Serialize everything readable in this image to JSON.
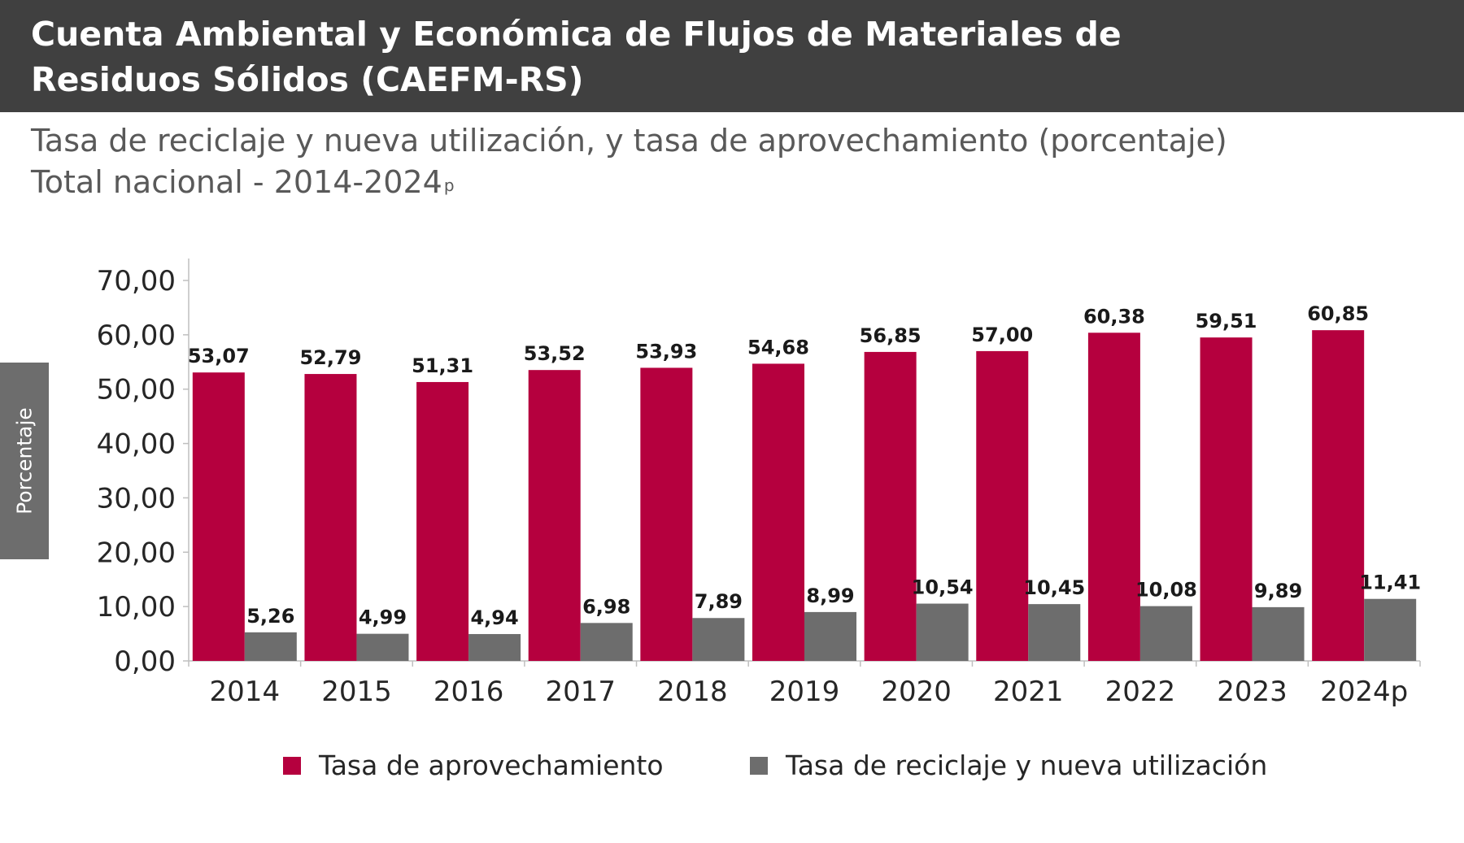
{
  "header": {
    "title": "Cuenta Ambiental y Económica de Flujos de Materiales de Residuos Sólidos (CAEFM-RS)",
    "subtitle_line1": "Tasa de reciclaje y nueva utilización, y tasa de aprovechamiento (porcentaje)",
    "subtitle_line2": "Total nacional - 2014-2024",
    "subtitle_sup": "p"
  },
  "colors": {
    "header_bg": "#404040",
    "series_1": "#b5003e",
    "series_2": "#6d6d6d"
  },
  "chart_data": {
    "type": "bar",
    "title": "",
    "xlabel": "",
    "ylabel": "Porcentaje",
    "ylim": [
      0,
      70
    ],
    "yticks": [
      "0,00",
      "10,00",
      "20,00",
      "30,00",
      "40,00",
      "50,00",
      "60,00",
      "70,00"
    ],
    "grid": false,
    "legend_position": "bottom",
    "categories": [
      "2014",
      "2015",
      "2016",
      "2017",
      "2018",
      "2019",
      "2020",
      "2021",
      "2022",
      "2023",
      "2024p"
    ],
    "series": [
      {
        "name": "Tasa de aprovechamiento",
        "color": "#b5003e",
        "values": [
          53.07,
          52.79,
          51.31,
          53.52,
          53.93,
          54.68,
          56.85,
          57.0,
          60.38,
          59.51,
          60.85
        ],
        "labels": [
          "53,07",
          "52,79",
          "51,31",
          "53,52",
          "53,93",
          "54,68",
          "56,85",
          "57,00",
          "60,38",
          "59,51",
          "60,85"
        ]
      },
      {
        "name": "Tasa de reciclaje y nueva utilización",
        "color": "#6d6d6d",
        "values": [
          5.26,
          4.99,
          4.94,
          6.98,
          7.89,
          8.99,
          10.54,
          10.45,
          10.08,
          9.89,
          11.41
        ],
        "labels": [
          "5,26",
          "4,99",
          "4,94",
          "6,98",
          "7,89",
          "8,99",
          "10,54",
          "10,45",
          "10,08",
          "9,89",
          "11,41"
        ]
      }
    ]
  }
}
